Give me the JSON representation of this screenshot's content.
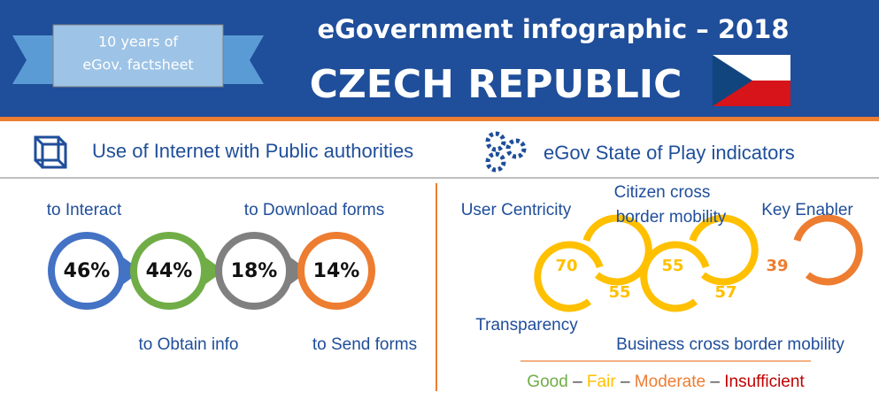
{
  "header": {
    "badge": [
      "10 years of",
      "eGov. factsheet"
    ],
    "title": "eGovernment infographic – 2018",
    "country": "CZECH REPUBLIC"
  },
  "internet_use": {
    "title": "Use of Internet with Public authorities",
    "items": [
      {
        "label": "to Interact",
        "value": "46%"
      },
      {
        "label": "to Obtain info",
        "value": "44%"
      },
      {
        "label": "to Download forms",
        "value": "18%"
      },
      {
        "label": "to Send forms",
        "value": "14%"
      }
    ]
  },
  "state_of_play": {
    "title": "eGov State of Play indicators",
    "items": [
      {
        "label": [
          "User Centricity"
        ],
        "value": "70"
      },
      {
        "label": [
          "Transparency"
        ],
        "value": "55"
      },
      {
        "label": [
          "Citizen cross",
          "border mobility"
        ],
        "value": "55"
      },
      {
        "label": [
          "Business cross border mobility"
        ],
        "value": "57"
      },
      {
        "label": [
          "Key Enabler"
        ],
        "value": "39"
      }
    ],
    "legend": {
      "items": [
        "Good",
        "Fair",
        "Moderate",
        "Insufficient"
      ],
      "separator": "–"
    }
  }
}
